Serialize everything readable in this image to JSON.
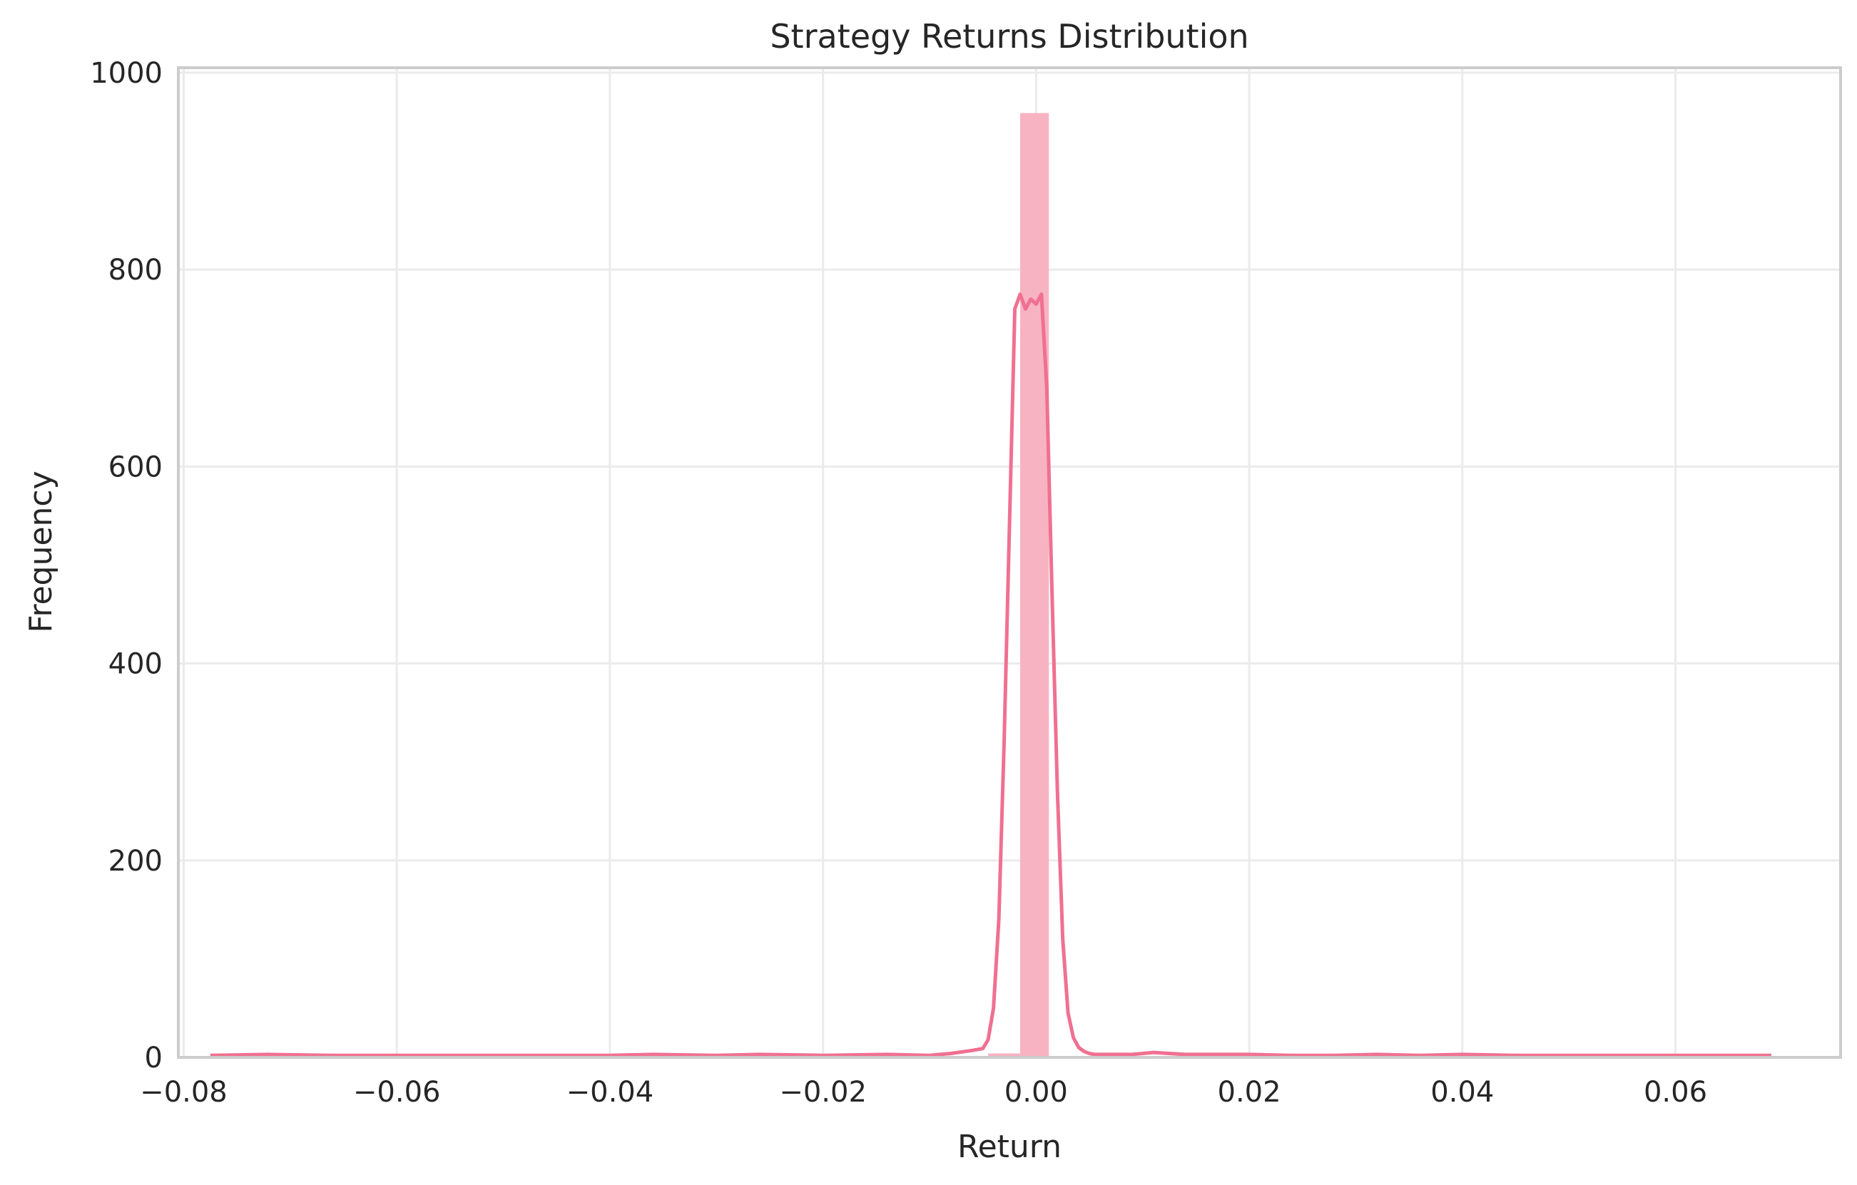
{
  "chart_data": {
    "type": "bar",
    "title": "Strategy Returns Distribution",
    "xlabel": "Return",
    "ylabel": "Frequency",
    "xlim": [
      -0.0805,
      0.0755
    ],
    "ylim": [
      0,
      1005
    ],
    "x_ticks": [
      -0.08,
      -0.06,
      -0.04,
      -0.02,
      0.0,
      0.02,
      0.04,
      0.06
    ],
    "x_tick_labels": [
      "−0.08",
      "−0.06",
      "−0.04",
      "−0.02",
      "0.00",
      "0.02",
      "0.04",
      "0.06"
    ],
    "y_ticks": [
      0,
      200,
      400,
      600,
      800,
      1000
    ],
    "y_tick_labels": [
      "0",
      "200",
      "400",
      "600",
      "800",
      "1000"
    ],
    "grid": true,
    "colors": {
      "bar": "#f7b3c2",
      "kde": "#f07090",
      "grid": "#ebebeb",
      "frame": "#cccccc"
    },
    "histogram": {
      "bins": [
        {
          "x0": -0.0045,
          "x1": -0.0015,
          "value": 4
        },
        {
          "x0": -0.0015,
          "x1": 0.0012,
          "value": 959
        }
      ]
    },
    "kde": {
      "x": [
        -0.0775,
        -0.072,
        -0.066,
        -0.06,
        -0.05,
        -0.04,
        -0.036,
        -0.03,
        -0.026,
        -0.02,
        -0.014,
        -0.01,
        -0.008,
        -0.006,
        -0.005,
        -0.0045,
        -0.004,
        -0.0035,
        -0.003,
        -0.0025,
        -0.002,
        -0.0015,
        -0.001,
        -0.0005,
        0.0,
        0.0005,
        0.001,
        0.0015,
        0.002,
        0.0025,
        0.003,
        0.0035,
        0.004,
        0.0045,
        0.005,
        0.0055,
        0.006,
        0.009,
        0.011,
        0.014,
        0.02,
        0.024,
        0.028,
        0.032,
        0.036,
        0.04,
        0.045,
        0.052,
        0.06,
        0.069
      ],
      "y": [
        2,
        3,
        2,
        2,
        2,
        2,
        3,
        2,
        3,
        2,
        3,
        2,
        4,
        7,
        9,
        18,
        50,
        140,
        320,
        540,
        760,
        775,
        760,
        770,
        765,
        775,
        680,
        470,
        270,
        120,
        45,
        20,
        10,
        6,
        4,
        3,
        3,
        3,
        5,
        3,
        3,
        2,
        2,
        3,
        2,
        3,
        2,
        2,
        2,
        2
      ]
    }
  }
}
